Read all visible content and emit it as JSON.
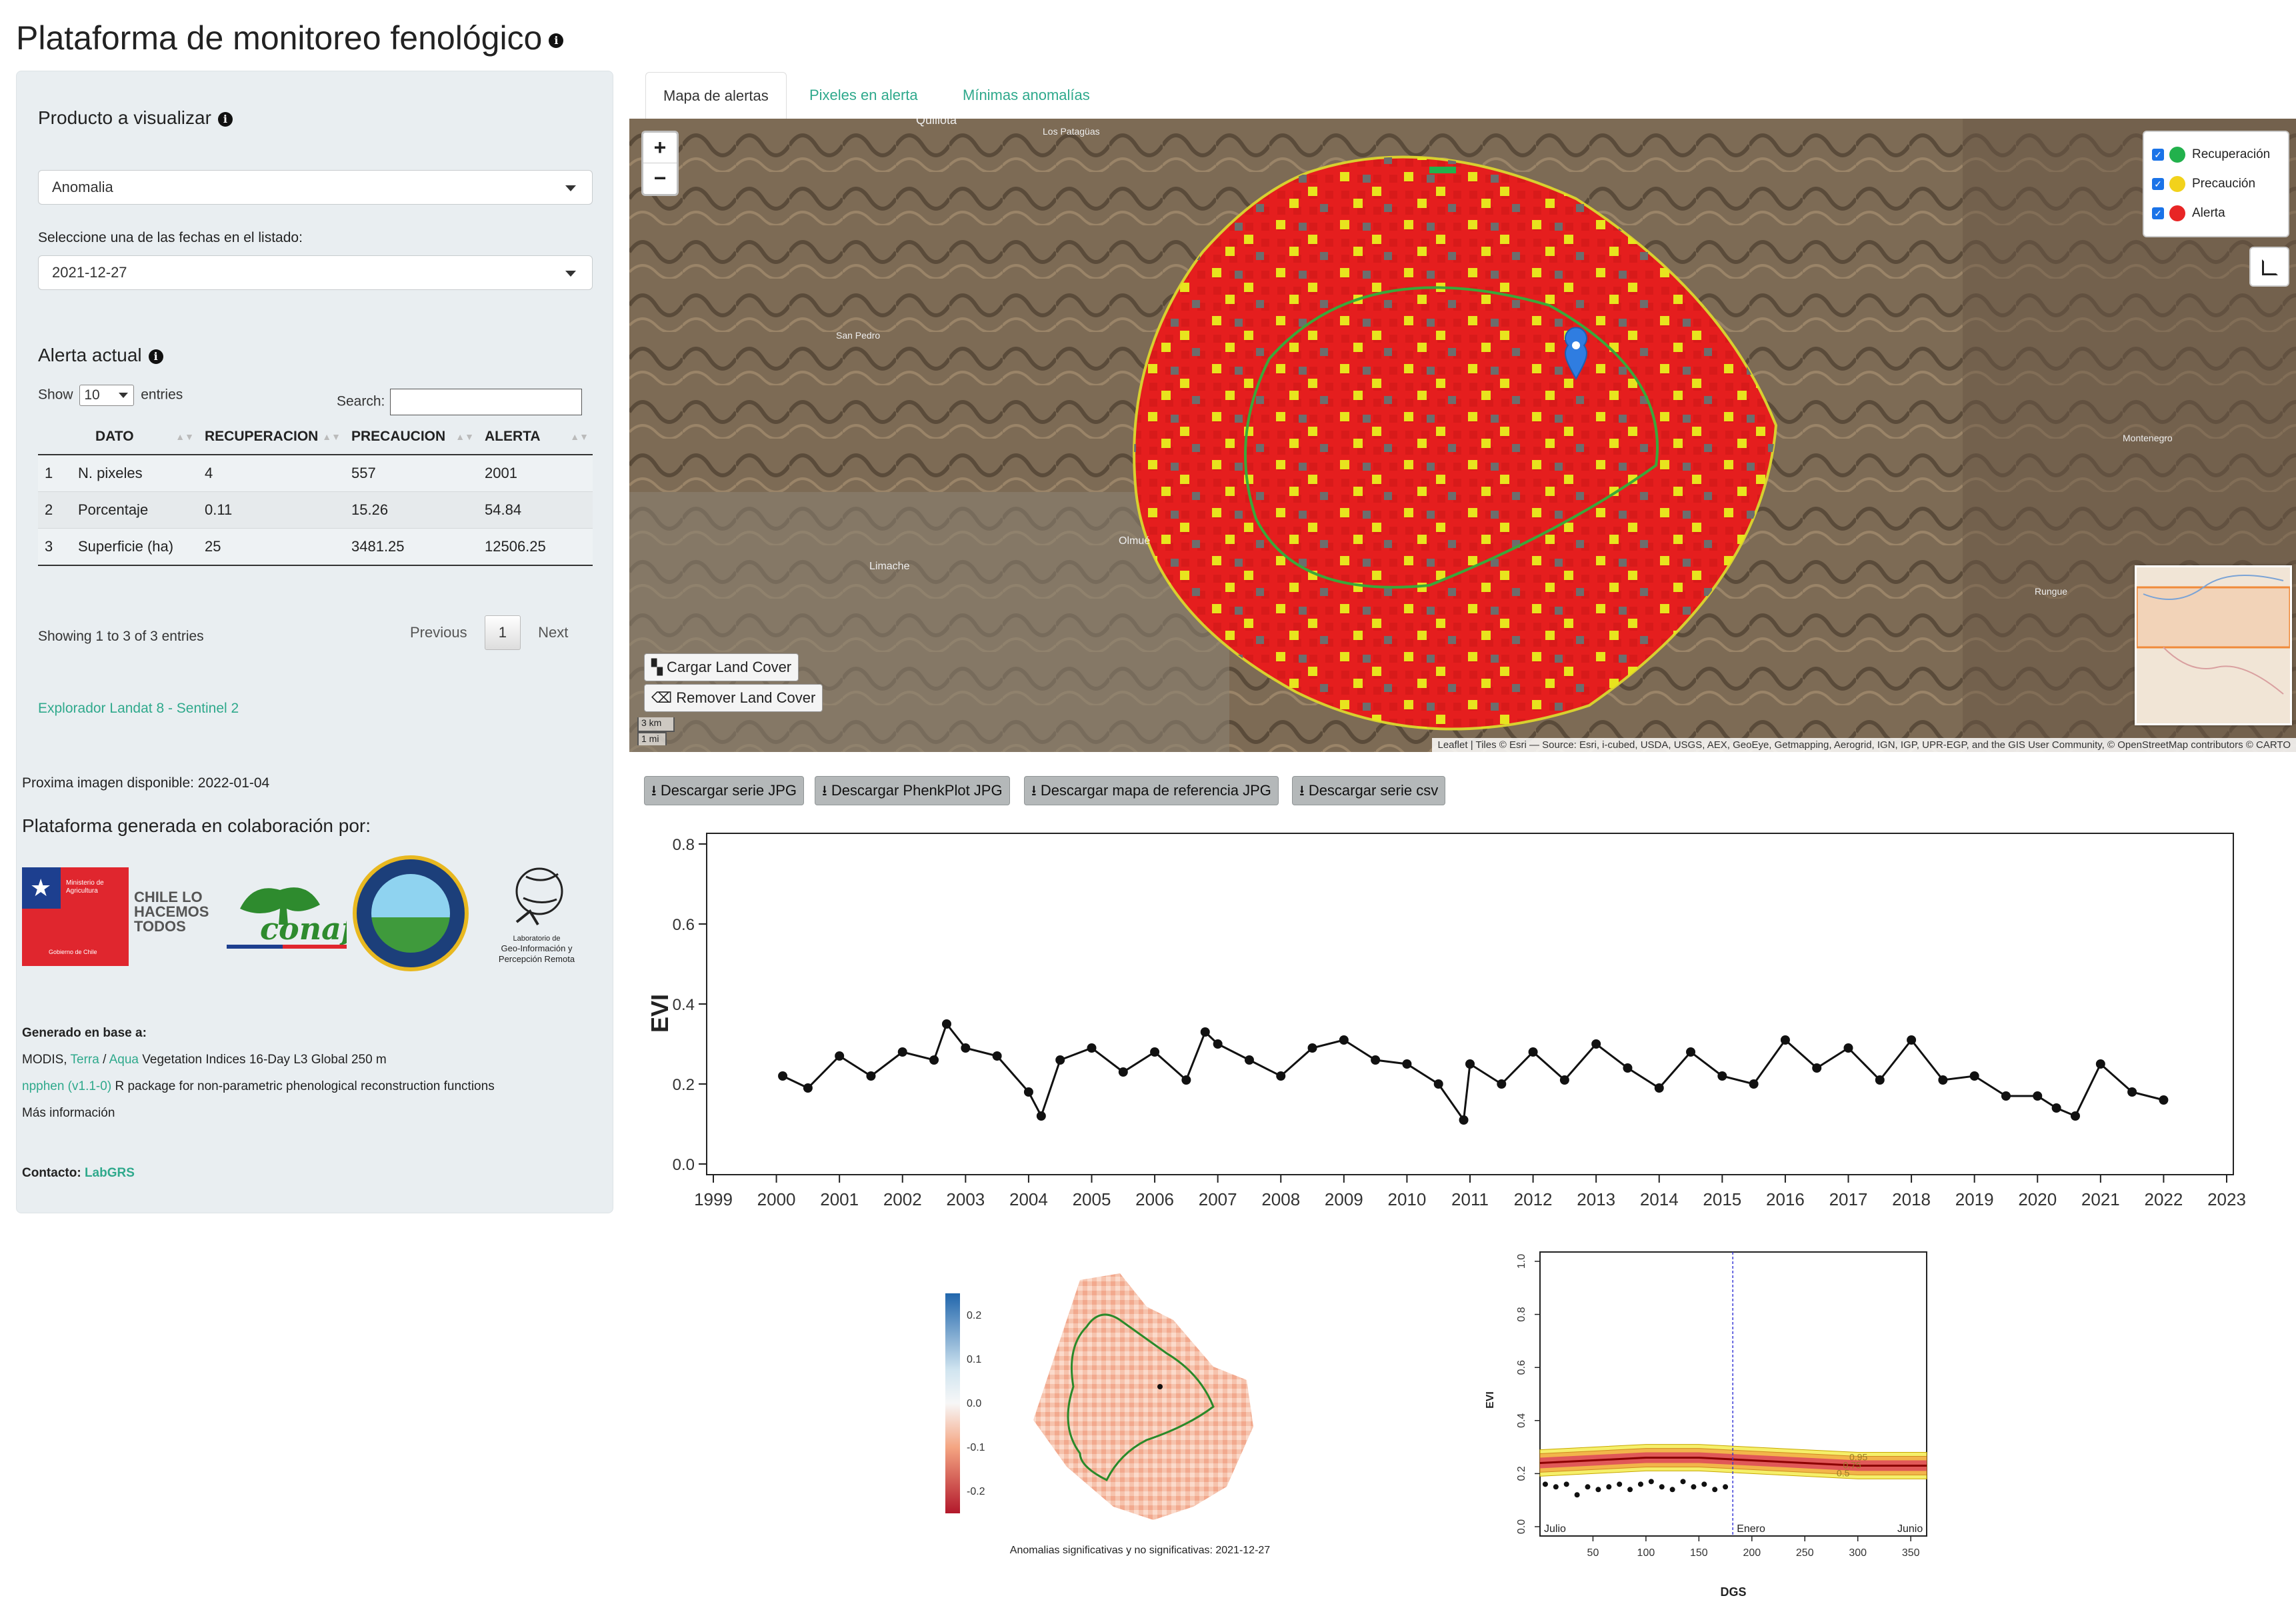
{
  "header": {
    "title": "Plataforma de monitoreo fenológico"
  },
  "sidebar": {
    "product_heading": "Producto a visualizar",
    "product_select": "Anomalia",
    "date_label": "Seleccione una de las fechas en el listado:",
    "date_select": "2021-12-27",
    "alert_heading": "Alerta actual",
    "table": {
      "show_label": "Show",
      "length": "10",
      "entries_label": "entries",
      "search_label": "Search:",
      "columns": [
        "",
        "DATO",
        "RECUPERACION",
        "PRECAUCION",
        "ALERTA"
      ],
      "rows": [
        [
          "1",
          "N. pixeles",
          "4",
          "557",
          "2001"
        ],
        [
          "2",
          "Porcentaje",
          "0.11",
          "15.26",
          "54.84"
        ],
        [
          "3",
          "Superficie (ha)",
          "25",
          "3481.25",
          "12506.25"
        ]
      ],
      "info": "Showing 1 to 3 of 3 entries",
      "previous": "Previous",
      "page": "1",
      "next": "Next"
    },
    "explorer_link": "Explorador Landat 8 - Sentinel 2",
    "next_image": "Proxima imagen disponible: 2022-01-04",
    "collab_heading": "Plataforma generada en colaboración por:",
    "logos": {
      "gob_top": "Ministerio de Agricultura",
      "gob_bottom": "Gobierno de Chile",
      "chile_lines": [
        "CHILE LO",
        "HACEMOS",
        "TODOS"
      ],
      "conaf": "conaf",
      "lab_lines": [
        "Laboratorio de",
        "Geo-Información y",
        "Percepción Remota"
      ]
    },
    "generated_heading": "Generado en base a:",
    "modis_prefix": "MODIS,",
    "terra": "Terra",
    "slash": " / ",
    "aqua": "Aqua",
    "modis_suffix": "Vegetation Indices 16-Day L3 Global 250 m",
    "npphen": "npphen (v1.1-0)",
    "npphen_suffix": "R package for non-parametric phenological reconstruction functions",
    "more_info": "Más información",
    "contact_label": "Contacto:",
    "contact_link": "LabGRS"
  },
  "tabs": [
    {
      "label": "Mapa de alertas"
    },
    {
      "label": "Pixeles en alerta"
    },
    {
      "label": "Mínimas anomalías"
    }
  ],
  "map": {
    "zoom_in": "+",
    "zoom_out": "−",
    "layers": [
      {
        "label": "Recuperación",
        "color": "#22b14c"
      },
      {
        "label": "Precaución",
        "color": "#f2d21b"
      },
      {
        "label": "Alerta",
        "color": "#e82525"
      }
    ],
    "load_lc": "Cargar Land Cover",
    "remove_lc": "Remover Land Cover",
    "scale_km": "3 km",
    "scale_mi": "1 mi",
    "place_labels": [
      "Quillota",
      "Los Patagüas",
      "San Pedro",
      "Limache",
      "Olmué",
      "Montenegro",
      "Rungue"
    ],
    "attribution": "Leaflet | Tiles © Esri — Source: Esri, i-cubed, USDA, USGS, AEX, GeoEye, Getmapping, Aerogrid, IGN, IGP, UPR-EGP, and the GIS User Community, © OpenStreetMap contributors © CARTO"
  },
  "downloads": [
    {
      "label": "Descargar serie JPG"
    },
    {
      "label": "Descargar PhenkPlot JPG"
    },
    {
      "label": "Descargar mapa de referencia JPG"
    },
    {
      "label": "Descargar serie csv"
    }
  ],
  "chart_data": [
    {
      "type": "line",
      "ylabel": "EVI",
      "xlabel": "",
      "xlim": [
        1999,
        2023
      ],
      "ylim": [
        0.0,
        0.8
      ],
      "x_ticks": [
        "1999",
        "2000",
        "2001",
        "2002",
        "2003",
        "2004",
        "2005",
        "2006",
        "2007",
        "2008",
        "2009",
        "2010",
        "2011",
        "2012",
        "2013",
        "2014",
        "2015",
        "2016",
        "2017",
        "2018",
        "2019",
        "2020",
        "2021",
        "2022",
        "2023"
      ],
      "y_ticks": [
        "0.0",
        "0.2",
        "0.4",
        "0.6",
        "0.8"
      ],
      "series": [
        {
          "x": [
            2000.1,
            2000.5,
            2001.0,
            2001.5,
            2002.0,
            2002.5,
            2002.7,
            2003.0,
            2003.5,
            2004.0,
            2004.2,
            2004.5,
            2005.0,
            2005.5,
            2006.0,
            2006.5,
            2006.8,
            2007.0,
            2007.5,
            2008.0,
            2008.5,
            2009.0,
            2009.5,
            2010.0,
            2010.5,
            2010.9,
            2011.0,
            2011.5,
            2012.0,
            2012.5,
            2013.0,
            2013.5,
            2014.0,
            2014.5,
            2015.0,
            2015.5,
            2016.0,
            2016.5,
            2017.0,
            2017.5,
            2018.0,
            2018.5,
            2019.0,
            2019.5,
            2020.0,
            2020.3,
            2020.6,
            2021.0,
            2021.5,
            2022.0
          ],
          "y": [
            0.22,
            0.19,
            0.27,
            0.22,
            0.28,
            0.26,
            0.35,
            0.29,
            0.27,
            0.18,
            0.12,
            0.26,
            0.29,
            0.23,
            0.28,
            0.21,
            0.33,
            0.3,
            0.26,
            0.22,
            0.29,
            0.31,
            0.26,
            0.25,
            0.2,
            0.11,
            0.25,
            0.2,
            0.28,
            0.21,
            0.3,
            0.24,
            0.19,
            0.28,
            0.22,
            0.2,
            0.31,
            0.24,
            0.29,
            0.21,
            0.31,
            0.21,
            0.22,
            0.17,
            0.17,
            0.14,
            0.12,
            0.25,
            0.18,
            0.16
          ]
        }
      ]
    },
    {
      "type": "heatmap",
      "title": "Anomalias significativas y no significativas: 2021-12-27",
      "colorbar_ticks": [
        "0.2",
        "0.1",
        "0.0",
        "-0.1",
        "-0.2"
      ],
      "colorbar_range": [
        -0.25,
        0.25
      ]
    },
    {
      "type": "line",
      "xlabel": "DGS",
      "ylabel": "EVI",
      "xlim": [
        0,
        365
      ],
      "ylim": [
        0.0,
        1.0
      ],
      "x_ticks": [
        "50",
        "100",
        "150",
        "200",
        "250",
        "300",
        "350"
      ],
      "y_ticks": [
        "0.0",
        "0.2",
        "0.4",
        "0.6",
        "0.8",
        "1.0"
      ],
      "annotations": [
        "Julio",
        "Enero",
        "Junio"
      ],
      "vline_x": 182,
      "band_labels": [
        "0.5",
        "0.75",
        "0.95"
      ],
      "series": [
        {
          "name": "",
          "x": [
            0,
            50,
            100,
            150,
            200,
            250,
            300,
            365
          ],
          "y": [
            0.24,
            0.25,
            0.26,
            0.26,
            0.25,
            0.24,
            0.23,
            0.23
          ]
        },
        {
          "name": "",
          "x": [
            5,
            15,
            25,
            35,
            45,
            55,
            65,
            75,
            85,
            95,
            105,
            115,
            125,
            135,
            145,
            155,
            165,
            175
          ],
          "y": [
            0.16,
            0.15,
            0.16,
            0.12,
            0.15,
            0.14,
            0.15,
            0.16,
            0.14,
            0.16,
            0.17,
            0.15,
            0.14,
            0.17,
            0.15,
            0.16,
            0.14,
            0.15
          ]
        }
      ]
    }
  ]
}
